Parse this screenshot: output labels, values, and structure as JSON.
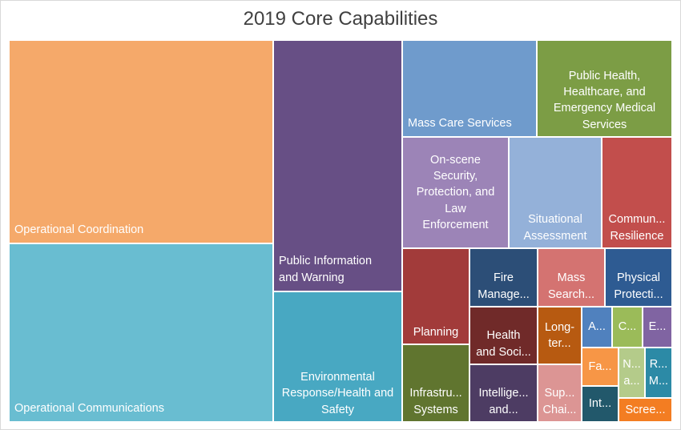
{
  "chart_data": {
    "type": "treemap",
    "title": "2019 Core Capabilities",
    "items": [
      {
        "label": "Operational Coordination",
        "color": "#f5a96a"
      },
      {
        "label": "Operational Communications",
        "color": "#69bdd1"
      },
      {
        "label": "Public Information\nand Warning",
        "color": "#674f85"
      },
      {
        "label": "Environmental\nResponse/Health and\nSafety",
        "color": "#48a8c2"
      },
      {
        "label": "Mass Care Services",
        "color": "#6f9bcc"
      },
      {
        "label": "Public Health,\nHealthcare, and\nEmergency Medical\nServices",
        "color": "#7c9d45"
      },
      {
        "label": "On-scene\nSecurity,\nProtection, and\nLaw\nEnforcement",
        "color": "#9c84b7"
      },
      {
        "label": "Situational\nAssessment",
        "color": "#94b1d9"
      },
      {
        "label": "Commun...\nResilience",
        "color": "#c24e4c"
      },
      {
        "label": "Planning",
        "color": "#a23b3a"
      },
      {
        "label": "Fire\nManage...",
        "color": "#2c4e77"
      },
      {
        "label": "Mass\nSearch...",
        "color": "#d47371"
      },
      {
        "label": "Physical\nProtecti...",
        "color": "#2e5b92"
      },
      {
        "label": "Health\nand Soci...",
        "color": "#702a29"
      },
      {
        "label": "Long-\nter...",
        "color": "#b75a11"
      },
      {
        "label": "A...",
        "color": "#5081be"
      },
      {
        "label": "C...",
        "color": "#9bbb59"
      },
      {
        "label": "E...",
        "color": "#8064a2"
      },
      {
        "label": "Infrastru...\nSystems",
        "color": "#60752f"
      },
      {
        "label": "Intellige...\nand...",
        "color": "#4d3c63"
      },
      {
        "label": "Sup...\nChai...",
        "color": "#dc9594"
      },
      {
        "label": "Fa...",
        "color": "#f79646"
      },
      {
        "label": "N...\na...",
        "color": "#b4cb8a"
      },
      {
        "label": "R...\nM...",
        "color": "#2c8aa6"
      },
      {
        "label": "Int...",
        "color": "#22586b"
      },
      {
        "label": "Scree...",
        "color": "#f37d22"
      }
    ]
  }
}
